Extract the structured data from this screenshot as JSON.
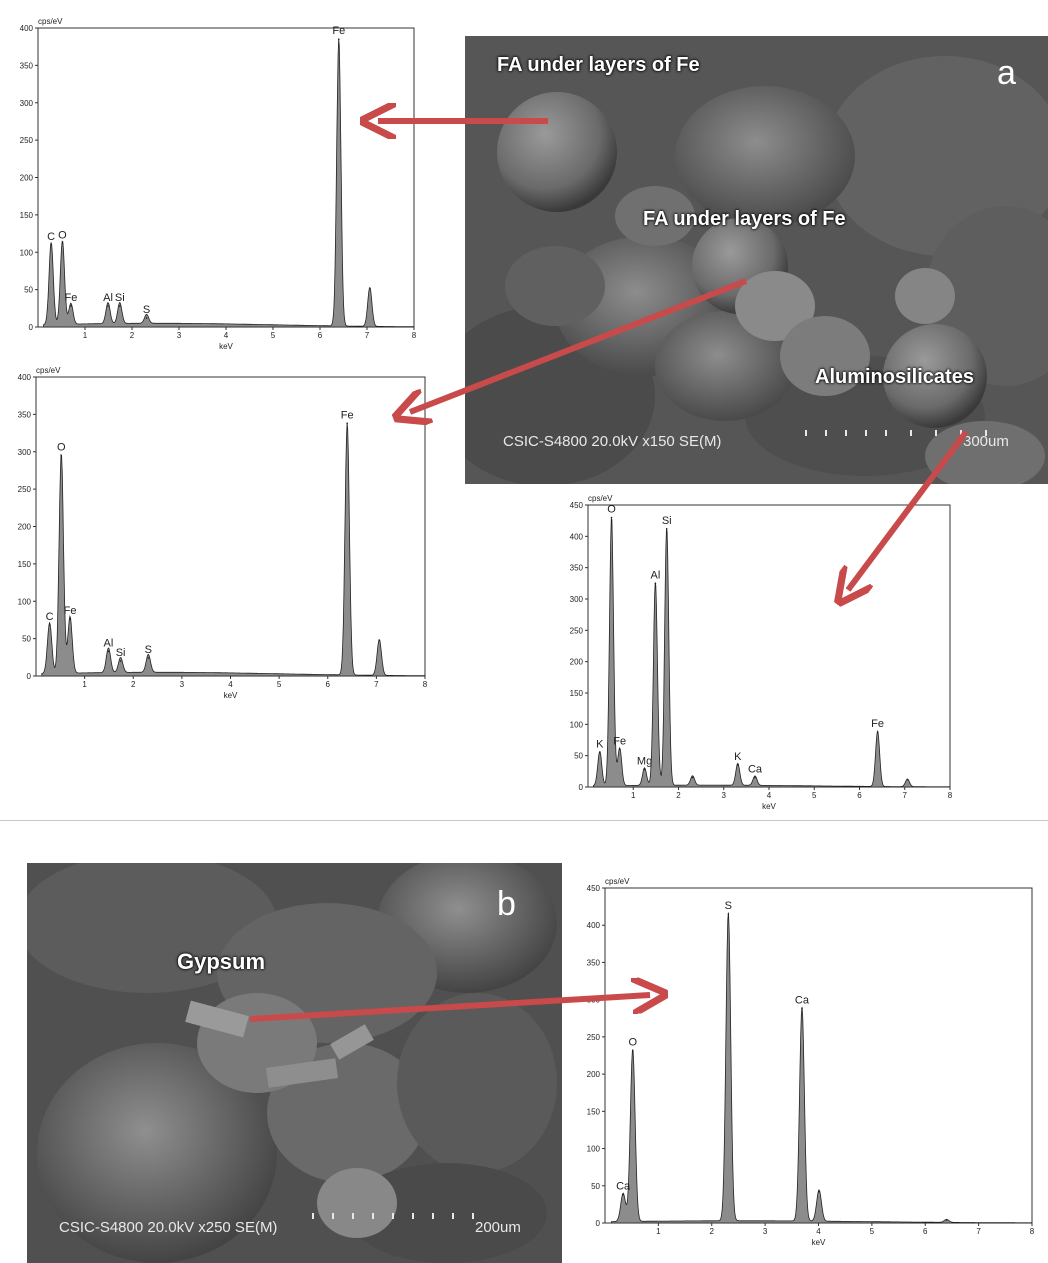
{
  "figure": {
    "panel_a": {
      "letter": "a",
      "labels": [
        "FA under layers of Fe",
        "FA under layers of Fe",
        "Aluminosilicates"
      ],
      "info": "CSIC-S4800 20.0kV x150 SE(M)",
      "scale": "300um"
    },
    "panel_b": {
      "letter": "b",
      "labels": [
        "Gypsum"
      ],
      "info": "CSIC-S4800 20.0kV x250 SE(M)",
      "scale": "200um"
    },
    "colors": {
      "arrow": "#c94a4a",
      "peak_fill": "#8c8c8c",
      "sem_base": "#5a5a5a"
    }
  },
  "chart_data": [
    {
      "type": "area",
      "ylabel": "cps/eV",
      "xlabel": "keV",
      "xlim": [
        0,
        8
      ],
      "ylim": [
        0,
        400
      ],
      "yticks": [
        0,
        50,
        100,
        150,
        200,
        250,
        300,
        350,
        400
      ],
      "xticks": [
        1,
        2,
        3,
        4,
        5,
        6,
        7,
        8
      ],
      "baseline": 5,
      "peaks": [
        {
          "label": "C",
          "x": 0.28,
          "y": 110
        },
        {
          "label": "O",
          "x": 0.52,
          "y": 112
        },
        {
          "label": "Fe",
          "x": 0.7,
          "y": 28
        },
        {
          "label": "Al",
          "x": 1.49,
          "y": 28
        },
        {
          "label": "Si",
          "x": 1.74,
          "y": 28
        },
        {
          "label": "S",
          "x": 2.31,
          "y": 12
        },
        {
          "label": "Fe",
          "x": 6.4,
          "y": 385
        },
        {
          "label": "",
          "x": 7.06,
          "y": 52
        }
      ]
    },
    {
      "type": "area",
      "ylabel": "cps/eV",
      "xlabel": "keV",
      "xlim": [
        0,
        8
      ],
      "ylim": [
        0,
        400
      ],
      "yticks": [
        0,
        50,
        100,
        150,
        200,
        250,
        300,
        350,
        400
      ],
      "xticks": [
        1,
        2,
        3,
        4,
        5,
        6,
        7,
        8
      ],
      "baseline": 5,
      "peaks": [
        {
          "label": "C",
          "x": 0.28,
          "y": 68
        },
        {
          "label": "O",
          "x": 0.52,
          "y": 295
        },
        {
          "label": "Fe",
          "x": 0.7,
          "y": 76
        },
        {
          "label": "Al",
          "x": 1.49,
          "y": 33
        },
        {
          "label": "Si",
          "x": 1.74,
          "y": 20
        },
        {
          "label": "S",
          "x": 2.31,
          "y": 24
        },
        {
          "label": "Fe",
          "x": 6.4,
          "y": 338
        },
        {
          "label": "",
          "x": 7.06,
          "y": 48
        }
      ]
    },
    {
      "type": "area",
      "ylabel": "cps/eV",
      "xlabel": "keV",
      "xlim": [
        0,
        8
      ],
      "ylim": [
        0,
        450
      ],
      "yticks": [
        0,
        50,
        100,
        150,
        200,
        250,
        300,
        350,
        400,
        450
      ],
      "xticks": [
        1,
        2,
        3,
        4,
        5,
        6,
        7,
        8
      ],
      "baseline": 3,
      "peaks": [
        {
          "label": "K",
          "x": 0.26,
          "y": 55
        },
        {
          "label": "O",
          "x": 0.52,
          "y": 430
        },
        {
          "label": "Fe",
          "x": 0.7,
          "y": 60
        },
        {
          "label": "Mg",
          "x": 1.25,
          "y": 28
        },
        {
          "label": "Al",
          "x": 1.49,
          "y": 325
        },
        {
          "label": "Si",
          "x": 1.74,
          "y": 412
        },
        {
          "label": "",
          "x": 2.31,
          "y": 15
        },
        {
          "label": "K",
          "x": 3.31,
          "y": 35
        },
        {
          "label": "Ca",
          "x": 3.69,
          "y": 15
        },
        {
          "label": "Fe",
          "x": 6.4,
          "y": 88
        },
        {
          "label": "",
          "x": 7.06,
          "y": 12
        }
      ]
    },
    {
      "type": "area",
      "ylabel": "cps/eV",
      "xlabel": "keV",
      "xlim": [
        0,
        8
      ],
      "ylim": [
        0,
        450
      ],
      "yticks": [
        0,
        50,
        100,
        150,
        200,
        250,
        300,
        350,
        400,
        450
      ],
      "xticks": [
        1,
        2,
        3,
        4,
        5,
        6,
        7,
        8
      ],
      "baseline": 3,
      "peaks": [
        {
          "label": "Ca",
          "x": 0.34,
          "y": 38
        },
        {
          "label": "O",
          "x": 0.52,
          "y": 232
        },
        {
          "label": "S",
          "x": 2.31,
          "y": 415
        },
        {
          "label": "Ca",
          "x": 3.69,
          "y": 288
        },
        {
          "label": "",
          "x": 4.01,
          "y": 42
        },
        {
          "label": "",
          "x": 6.4,
          "y": 4
        }
      ]
    }
  ]
}
